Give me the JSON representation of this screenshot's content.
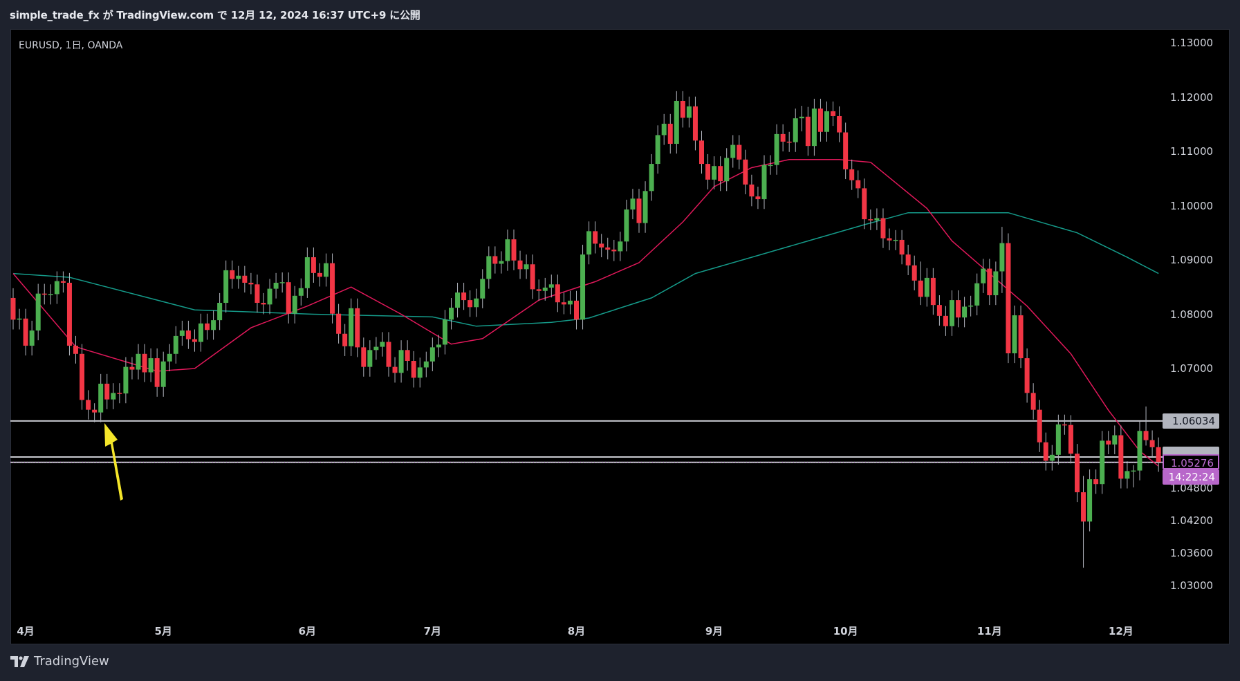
{
  "header": {
    "title": "simple_trade_fx が TradingView.com で 12月 12, 2024 16:37 UTC+9 に公開"
  },
  "symbol_line": "EURUSD, 1日, OANDA",
  "footer": {
    "brand": "TradingView"
  },
  "colors": {
    "up": "#4caf50",
    "down": "#f23645",
    "wick": "#b2b5be",
    "ma_fast": "#e0185a",
    "ma_slow": "#159b8a",
    "level": "#c8cad0",
    "arrow": "#f5e62a",
    "current": "#b867ca"
  },
  "chart_data": {
    "type": "candlestick",
    "title": "EURUSD, 1日, OANDA",
    "ylim": [
      1.03,
      1.13
    ],
    "price_ticks": [
      "1.13000",
      "1.12000",
      "1.11000",
      "1.10000",
      "1.09000",
      "1.08000",
      "1.07000",
      "1.04800",
      "1.04200",
      "1.03600",
      "1.03000"
    ],
    "month_labels": [
      {
        "label": "4月",
        "bar": 2
      },
      {
        "label": "5月",
        "bar": 24
      },
      {
        "label": "6月",
        "bar": 47
      },
      {
        "label": "7月",
        "bar": 67
      },
      {
        "label": "8月",
        "bar": 90
      },
      {
        "label": "9月",
        "bar": 112
      },
      {
        "label": "10月",
        "bar": 133
      },
      {
        "label": "11月",
        "bar": 156
      },
      {
        "label": "12月",
        "bar": 177
      }
    ],
    "first_open": 1.083,
    "close": [
      1.079,
      1.0792,
      1.0742,
      1.077,
      1.0838,
      1.0836,
      1.0837,
      1.0861,
      1.0858,
      1.0742,
      1.0727,
      1.0642,
      1.0624,
      1.0619,
      1.0672,
      1.0643,
      1.0655,
      1.0654,
      1.0703,
      1.0698,
      1.0727,
      1.0693,
      1.0719,
      1.0666,
      1.0713,
      1.0727,
      1.076,
      1.077,
      1.0754,
      1.0749,
      1.0783,
      1.0771,
      1.0789,
      1.0821,
      1.0881,
      1.0865,
      1.0871,
      1.0858,
      1.0855,
      1.0821,
      1.0818,
      1.0847,
      1.0858,
      1.0859,
      1.0801,
      1.0834,
      1.0848,
      1.0905,
      1.0876,
      1.0869,
      1.0894,
      1.0801,
      1.0764,
      1.0741,
      1.0811,
      1.0739,
      1.0703,
      1.0734,
      1.074,
      1.0749,
      1.0703,
      1.0692,
      1.0734,
      1.0714,
      1.0683,
      1.0702,
      1.0713,
      1.0739,
      1.0744,
      1.079,
      1.0812,
      1.084,
      1.0826,
      1.0813,
      1.0829,
      1.0865,
      1.0907,
      1.0893,
      1.0898,
      1.0938,
      1.0899,
      1.0883,
      1.0892,
      1.0846,
      1.0843,
      1.0849,
      1.0855,
      1.0822,
      1.0818,
      1.0825,
      1.079,
      1.091,
      1.0953,
      1.093,
      1.0923,
      1.0919,
      1.0916,
      1.0934,
      1.0993,
      1.1013,
      1.0968,
      1.1027,
      1.1077,
      1.113,
      1.1151,
      1.1114,
      1.1193,
      1.1162,
      1.1183,
      1.112,
      1.1077,
      1.1048,
      1.1073,
      1.1045,
      1.1088,
      1.1112,
      1.1085,
      1.1039,
      1.1017,
      1.1012,
      1.1075,
      1.1075,
      1.1132,
      1.1118,
      1.1117,
      1.1161,
      1.1164,
      1.111,
      1.1179,
      1.1136,
      1.1174,
      1.1165,
      1.1135,
      1.1067,
      1.1047,
      1.1032,
      1.0975,
      1.0973,
      1.0977,
      1.094,
      1.0936,
      1.0937,
      1.091,
      1.089,
      1.0862,
      1.0832,
      1.0867,
      1.0817,
      1.0797,
      1.0778,
      1.0826,
      1.0794,
      1.0814,
      1.0816,
      1.0857,
      1.0884,
      1.0835,
      1.0879,
      1.0931,
      1.0728,
      1.0798,
      1.0719,
      1.0655,
      1.0624,
      1.0564,
      1.053,
      1.0541,
      1.0597,
      1.0596,
      1.0543,
      1.0472,
      1.0418,
      1.0496,
      1.0487,
      1.0567,
      1.056,
      1.0577,
      1.0497,
      1.0511,
      1.0512,
      1.0585,
      1.0568,
      1.0555,
      1.05276
    ],
    "wick_default_pips": [
      18,
      18
    ],
    "wick_overrides": {
      "13": [
        12,
        18
      ],
      "126": [
        20,
        24
      ],
      "145": [
        35,
        15
      ],
      "158": [
        30,
        40
      ],
      "171": [
        30,
        85
      ],
      "179": [
        10,
        30
      ],
      "181": [
        45,
        10
      ]
    },
    "ma_fast": [
      [
        0,
        1.0875
      ],
      [
        10,
        1.074
      ],
      [
        23,
        1.0695
      ],
      [
        29,
        1.07
      ],
      [
        38,
        1.0775
      ],
      [
        47,
        1.0815
      ],
      [
        54,
        1.085
      ],
      [
        62,
        1.08
      ],
      [
        70,
        1.0745
      ],
      [
        75,
        1.0755
      ],
      [
        84,
        1.0826
      ],
      [
        93,
        1.086
      ],
      [
        100,
        1.0895
      ],
      [
        107,
        1.097
      ],
      [
        112,
        1.1035
      ],
      [
        118,
        1.107
      ],
      [
        124,
        1.1085
      ],
      [
        132,
        1.1085
      ],
      [
        137,
        1.108
      ],
      [
        146,
        1.0995
      ],
      [
        150,
        1.0935
      ],
      [
        156,
        1.0875
      ],
      [
        162,
        1.0815
      ],
      [
        169,
        1.0727
      ],
      [
        175,
        1.0623
      ],
      [
        180,
        1.0548
      ],
      [
        183,
        1.052
      ]
    ],
    "ma_slow": [
      [
        0,
        1.0875
      ],
      [
        9,
        1.0868
      ],
      [
        29,
        1.0808
      ],
      [
        48,
        1.08
      ],
      [
        67,
        1.0795
      ],
      [
        74,
        1.0778
      ],
      [
        86,
        1.0785
      ],
      [
        92,
        1.0793
      ],
      [
        102,
        1.083
      ],
      [
        109,
        1.0875
      ],
      [
        118,
        1.0905
      ],
      [
        127,
        1.0935
      ],
      [
        136,
        1.0965
      ],
      [
        143,
        1.0987
      ],
      [
        159,
        1.0987
      ],
      [
        170,
        1.095
      ],
      [
        178,
        1.0905
      ],
      [
        183,
        1.0875
      ]
    ],
    "levels": [
      {
        "price": 1.06034,
        "label": "1.06034"
      },
      {
        "price": 1.0537
      },
      {
        "price": 1.0527
      }
    ],
    "current_price": {
      "value": 1.05276,
      "label": "1.05276",
      "countdown": "14:22:24"
    }
  }
}
